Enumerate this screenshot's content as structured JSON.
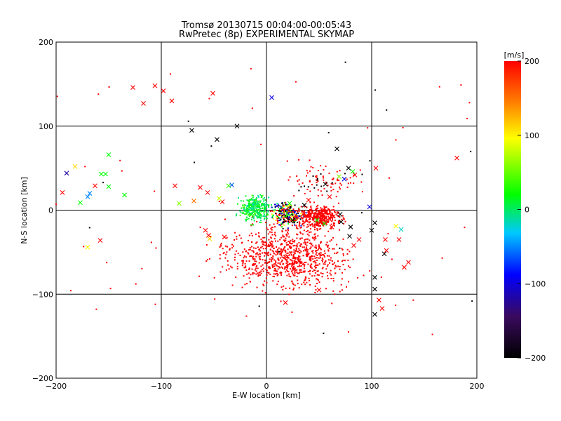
{
  "chart_data": {
    "type": "scatter",
    "title": "Tromsø 20130715 00:04:00-00:05:43",
    "subtitle": "RwPretec (8p) EXPERIMENTAL SKYMAP",
    "xlabel": "E-W location [km]",
    "ylabel": "N-S location [km]",
    "xlim": [
      -200,
      200
    ],
    "ylim": [
      -200,
      200
    ],
    "x_ticks": [
      -200,
      -100,
      0,
      100,
      200
    ],
    "y_ticks": [
      -200,
      -100,
      0,
      100,
      200
    ],
    "x_tick_labels": [
      "−200",
      "−100",
      "0",
      "100",
      "200"
    ],
    "y_tick_labels": [
      "−200",
      "−100",
      "0",
      "100",
      "200"
    ],
    "grid": true,
    "colorbar": {
      "label": "[m/s]",
      "range": [
        -200,
        200
      ],
      "ticks": [
        200,
        100,
        0,
        -100,
        -200
      ],
      "tick_labels": [
        "200",
        "100",
        "0",
        "−100",
        "−200"
      ],
      "colormap": [
        "#000000",
        "#3a0a5e",
        "#0000ff",
        "#00c8ff",
        "#00ff00",
        "#ffff00",
        "#ff8000",
        "#ff0000"
      ]
    },
    "series": [
      {
        "marker": "x",
        "note_values": "x=E-W km, y=N-S km, v=velocity m/s",
        "points": [
          {
            "x": -127,
            "y": 146,
            "v": 200
          },
          {
            "x": -106,
            "y": 148,
            "v": 200
          },
          {
            "x": -98,
            "y": 142,
            "v": 200
          },
          {
            "x": -117,
            "y": 127,
            "v": 200
          },
          {
            "x": -90,
            "y": 130,
            "v": 200
          },
          {
            "x": -51,
            "y": 139,
            "v": 200
          },
          {
            "x": 5,
            "y": 134,
            "v": -100
          },
          {
            "x": -28,
            "y": 100,
            "v": -200
          },
          {
            "x": -71,
            "y": 95,
            "v": -200
          },
          {
            "x": -47,
            "y": 84,
            "v": -200
          },
          {
            "x": -190,
            "y": 44,
            "v": -120
          },
          {
            "x": -182,
            "y": 52,
            "v": 110
          },
          {
            "x": -194,
            "y": 21,
            "v": 200
          },
          {
            "x": -163,
            "y": 29,
            "v": 200
          },
          {
            "x": -150,
            "y": 66,
            "v": 20
          },
          {
            "x": -153,
            "y": 43,
            "v": 20
          },
          {
            "x": -157,
            "y": 43,
            "v": 20
          },
          {
            "x": -150,
            "y": 28,
            "v": 20
          },
          {
            "x": -168,
            "y": 20,
            "v": -50
          },
          {
            "x": -170,
            "y": 16,
            "v": -50
          },
          {
            "x": -177,
            "y": 9,
            "v": 20
          },
          {
            "x": -135,
            "y": 18,
            "v": 20
          },
          {
            "x": -87,
            "y": 29,
            "v": 200
          },
          {
            "x": -83,
            "y": 8,
            "v": 60
          },
          {
            "x": -69,
            "y": 11,
            "v": 150
          },
          {
            "x": -63,
            "y": 27,
            "v": 200
          },
          {
            "x": -56,
            "y": 21,
            "v": 200
          },
          {
            "x": -42,
            "y": 10,
            "v": 200
          },
          {
            "x": -45,
            "y": 14,
            "v": 80
          },
          {
            "x": -36,
            "y": 29,
            "v": 40
          },
          {
            "x": -33,
            "y": 30,
            "v": -60
          },
          {
            "x": -55,
            "y": -30,
            "v": 200
          },
          {
            "x": -54,
            "y": -34,
            "v": 110
          },
          {
            "x": -58,
            "y": -24,
            "v": 200
          },
          {
            "x": -158,
            "y": -36,
            "v": 200
          },
          {
            "x": -170,
            "y": -44,
            "v": 100
          },
          {
            "x": 67,
            "y": 73,
            "v": -200
          },
          {
            "x": 78,
            "y": 50,
            "v": -200
          },
          {
            "x": 84,
            "y": 42,
            "v": 200
          },
          {
            "x": 82,
            "y": 46,
            "v": 20
          },
          {
            "x": 69,
            "y": 40,
            "v": 60
          },
          {
            "x": 74,
            "y": 37,
            "v": -100
          },
          {
            "x": 56,
            "y": 31,
            "v": -200
          },
          {
            "x": 60,
            "y": 16,
            "v": 200
          },
          {
            "x": 98,
            "y": 4,
            "v": -100
          },
          {
            "x": 104,
            "y": 50,
            "v": 200
          },
          {
            "x": 181,
            "y": 62,
            "v": 200
          },
          {
            "x": 100,
            "y": -24,
            "v": -200
          },
          {
            "x": 103,
            "y": -15,
            "v": -200
          },
          {
            "x": 123,
            "y": -19,
            "v": 100
          },
          {
            "x": 128,
            "y": -23,
            "v": -20
          },
          {
            "x": 113,
            "y": -35,
            "v": 200
          },
          {
            "x": 114,
            "y": -48,
            "v": 200
          },
          {
            "x": 112,
            "y": -52,
            "v": -200
          },
          {
            "x": 103,
            "y": -80,
            "v": -200
          },
          {
            "x": 103,
            "y": -94,
            "v": -200
          },
          {
            "x": 107,
            "y": -107,
            "v": 200
          },
          {
            "x": 103,
            "y": -124,
            "v": -200
          },
          {
            "x": 110,
            "y": -117,
            "v": 200
          },
          {
            "x": 126,
            "y": -35,
            "v": 200
          },
          {
            "x": 135,
            "y": -62,
            "v": 200
          },
          {
            "x": 131,
            "y": -68,
            "v": 200
          },
          {
            "x": 55,
            "y": -16,
            "v": 20
          },
          {
            "x": 62,
            "y": -20,
            "v": 200
          },
          {
            "x": 48,
            "y": -12,
            "v": 20
          },
          {
            "x": 71,
            "y": -14,
            "v": -200
          },
          {
            "x": 88,
            "y": -35,
            "v": 200
          },
          {
            "x": 83,
            "y": -42,
            "v": 200
          },
          {
            "x": 79,
            "y": -31,
            "v": -200
          },
          {
            "x": 80,
            "y": -20,
            "v": -200
          },
          {
            "x": 70,
            "y": -5,
            "v": -200
          },
          {
            "x": -40,
            "y": -32,
            "v": 200
          },
          {
            "x": 20,
            "y": -55,
            "v": 200
          },
          {
            "x": 18,
            "y": -110,
            "v": 200
          },
          {
            "x": 50,
            "y": -95,
            "v": 200
          },
          {
            "x": 22,
            "y": 8,
            "v": 20
          },
          {
            "x": 10,
            "y": 5,
            "v": -100
          },
          {
            "x": 25,
            "y": -12,
            "v": -200
          },
          {
            "x": -15,
            "y": 6,
            "v": 20
          },
          {
            "x": 36,
            "y": 6,
            "v": -200
          },
          {
            "x": 40,
            "y": 12,
            "v": 200
          }
        ]
      }
    ]
  }
}
